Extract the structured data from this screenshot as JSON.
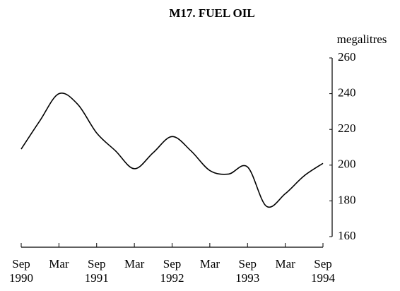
{
  "chart_data": {
    "type": "line",
    "title": "M17. FUEL OIL",
    "y_label": "megalitres",
    "categories": [
      "Sep\n1990",
      null,
      "Mar",
      null,
      "Sep\n1991",
      null,
      "Mar",
      null,
      "Sep\n1992",
      null,
      "Mar",
      null,
      "Sep\n1993",
      null,
      "Mar",
      null,
      "Sep\n1994"
    ],
    "values": [
      209,
      225,
      240,
      234,
      218,
      208,
      198,
      207,
      216,
      208,
      197,
      195,
      199,
      177,
      184,
      194,
      201
    ],
    "color": "#000000",
    "ylim": [
      160,
      260
    ],
    "yticks": [
      160,
      180,
      200,
      220,
      240,
      260
    ],
    "grid": false
  }
}
